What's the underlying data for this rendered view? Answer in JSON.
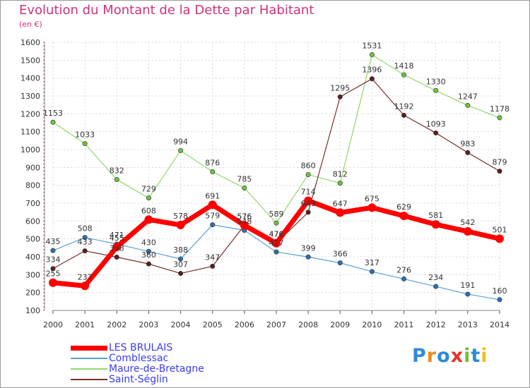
{
  "chart_data": {
    "type": "line",
    "title": "Evolution du Montant de la Dette par Habitant",
    "ylabel": "(en €)",
    "xlabel": "",
    "ylim": [
      100,
      1600
    ],
    "yticks": [
      100,
      200,
      300,
      400,
      500,
      600,
      700,
      800,
      900,
      1000,
      1100,
      1200,
      1300,
      1400,
      1500,
      1600
    ],
    "categories": [
      "2000",
      "2001",
      "2002",
      "2003",
      "2004",
      "2005",
      "2006",
      "2007",
      "2008",
      "2009",
      "2010",
      "2011",
      "2012",
      "2013",
      "2014"
    ],
    "grid": true,
    "legend_position": "bottom-left",
    "series": [
      {
        "name": "Comblessac",
        "color": "#5aa0d8",
        "marker": "#2a6fb0",
        "width": 1.2,
        "values": [
          435,
          508,
          471,
          430,
          388,
          579,
          548,
          427,
          399,
          366,
          317,
          276,
          234,
          191,
          160
        ],
        "labels": [
          "435",
          "508",
          "471",
          "430",
          "388",
          "579",
          "548",
          "427",
          "399",
          "366",
          "317",
          "276",
          "234",
          "191",
          "160"
        ]
      },
      {
        "name": "Maure-de-Bretagne",
        "color": "#90d86a",
        "marker": "#6cc23e",
        "width": 1.2,
        "values": [
          1153,
          1033,
          832,
          729,
          994,
          876,
          785,
          589,
          860,
          812,
          1531,
          1418,
          1330,
          1247,
          1178
        ],
        "labels": [
          "1153",
          "1033",
          "832",
          "729",
          "994",
          "876",
          "785",
          "589",
          "860",
          "812",
          "1531",
          "1418",
          "1330",
          "1247",
          "1178"
        ]
      },
      {
        "name": "Saint-Séglin",
        "color": "#7a2e2e",
        "marker": "#5a1e1e",
        "width": 1.2,
        "values": [
          334,
          433,
          398,
          360,
          307,
          347,
          576,
          476,
          649,
          1295,
          1396,
          1192,
          1093,
          983,
          879
        ],
        "labels": [
          "334",
          "433",
          "398",
          "360",
          "307",
          "347",
          "576",
          "476",
          "649",
          "1295",
          "1396",
          "1192",
          "1093",
          "983",
          "879"
        ]
      },
      {
        "name": "LES BRULAIS",
        "color": "#ff0000",
        "marker": "#ff0000",
        "width": 7,
        "values": [
          255,
          237,
          455,
          608,
          578,
          691,
          576,
          476,
          714,
          647,
          675,
          629,
          581,
          542,
          501
        ],
        "labels": [
          "255",
          "237",
          "455",
          "608",
          "578",
          "691",
          "576",
          "476",
          "714",
          "647",
          "675",
          "629",
          "581",
          "542",
          "501"
        ]
      }
    ]
  },
  "legend": {
    "items": [
      {
        "name": "LES BRULAIS",
        "color": "#ff0000",
        "thickness": 7
      },
      {
        "name": "Comblessac",
        "color": "#5aa0d8",
        "thickness": 2
      },
      {
        "name": "Maure-de-Bretagne",
        "color": "#90d86a",
        "thickness": 2
      },
      {
        "name": "Saint-Séglin",
        "color": "#7a2e2e",
        "thickness": 2
      }
    ]
  },
  "logo": {
    "text": "Proxiti",
    "letters": [
      "P",
      "r",
      "o",
      "x",
      "i",
      "t",
      "i"
    ],
    "colors": [
      "#2f8ad8",
      "#f08a1a",
      "#2f8ad8",
      "#e8302a",
      "#6fbf3a",
      "#2f8ad8",
      "#f0c020"
    ]
  }
}
